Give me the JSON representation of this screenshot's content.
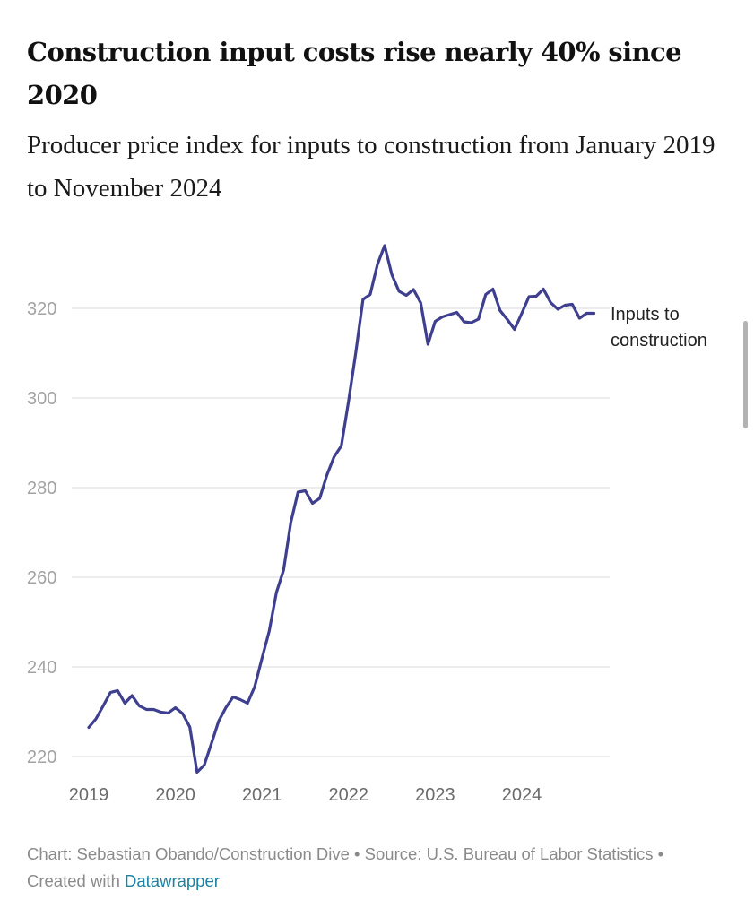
{
  "header": {
    "title": "Construction input costs rise nearly 40% since 2020",
    "subtitle": "Producer price index for inputs to construction from January 2019 to November 2024"
  },
  "footer": {
    "credit": "Chart: Sebastian Obando/Construction Dive • Source: U.S. Bureau of Labor Statistics • Created with ",
    "link_label": "Datawrapper"
  },
  "colors": {
    "line": "#3f3f8f",
    "gridline": "#e6e6e6",
    "link": "#1d81a2"
  },
  "chart_data": {
    "type": "line",
    "title": "Construction input costs rise nearly 40% since 2020",
    "subtitle": "Producer price index for inputs to construction from January 2019 to November 2024",
    "xlabel": "",
    "ylabel": "",
    "ylim": [
      220,
      334
    ],
    "yticks": [
      220,
      240,
      260,
      280,
      300,
      320
    ],
    "xticks": [
      "2019",
      "2020",
      "2021",
      "2022",
      "2023",
      "2024"
    ],
    "grid": true,
    "legend": "inline-right",
    "x": [
      "2019-01",
      "2019-02",
      "2019-03",
      "2019-04",
      "2019-05",
      "2019-06",
      "2019-07",
      "2019-08",
      "2019-09",
      "2019-10",
      "2019-11",
      "2019-12",
      "2020-01",
      "2020-02",
      "2020-03",
      "2020-04",
      "2020-05",
      "2020-06",
      "2020-07",
      "2020-08",
      "2020-09",
      "2020-10",
      "2020-11",
      "2020-12",
      "2021-01",
      "2021-02",
      "2021-03",
      "2021-04",
      "2021-05",
      "2021-06",
      "2021-07",
      "2021-08",
      "2021-09",
      "2021-10",
      "2021-11",
      "2021-12",
      "2022-01",
      "2022-02",
      "2022-03",
      "2022-04",
      "2022-05",
      "2022-06",
      "2022-07",
      "2022-08",
      "2022-09",
      "2022-10",
      "2022-11",
      "2022-12",
      "2023-01",
      "2023-02",
      "2023-03",
      "2023-04",
      "2023-05",
      "2023-06",
      "2023-07",
      "2023-08",
      "2023-09",
      "2023-10",
      "2023-11",
      "2023-12",
      "2024-01",
      "2024-02",
      "2024-03",
      "2024-04",
      "2024-05",
      "2024-06",
      "2024-07",
      "2024-08",
      "2024-09",
      "2024-10",
      "2024-11"
    ],
    "series": [
      {
        "name": "Inputs to construction",
        "label_lines": [
          "Inputs to",
          "construction"
        ],
        "values": [
          226.5,
          228.4,
          231.3,
          234.3,
          234.7,
          231.9,
          233.6,
          231.3,
          230.5,
          230.5,
          229.9,
          229.7,
          230.9,
          229.6,
          226.6,
          216.5,
          218.1,
          222.9,
          227.9,
          230.9,
          233.3,
          232.7,
          231.9,
          235.6,
          241.9,
          248.0,
          256.6,
          261.6,
          272.3,
          279.0,
          279.3,
          276.5,
          277.6,
          282.8,
          286.9,
          289.3,
          299.3,
          310.1,
          322.0,
          323.1,
          329.8,
          334.0,
          327.5,
          323.8,
          322.9,
          324.2,
          321.2,
          312.0,
          317.1,
          318.1,
          318.6,
          319.1,
          317.0,
          316.8,
          317.6,
          323.1,
          324.3,
          319.5,
          317.5,
          315.3,
          318.9,
          322.6,
          322.7,
          324.3,
          321.3,
          319.8,
          320.7,
          320.9,
          317.8,
          318.9,
          318.9
        ]
      }
    ]
  }
}
